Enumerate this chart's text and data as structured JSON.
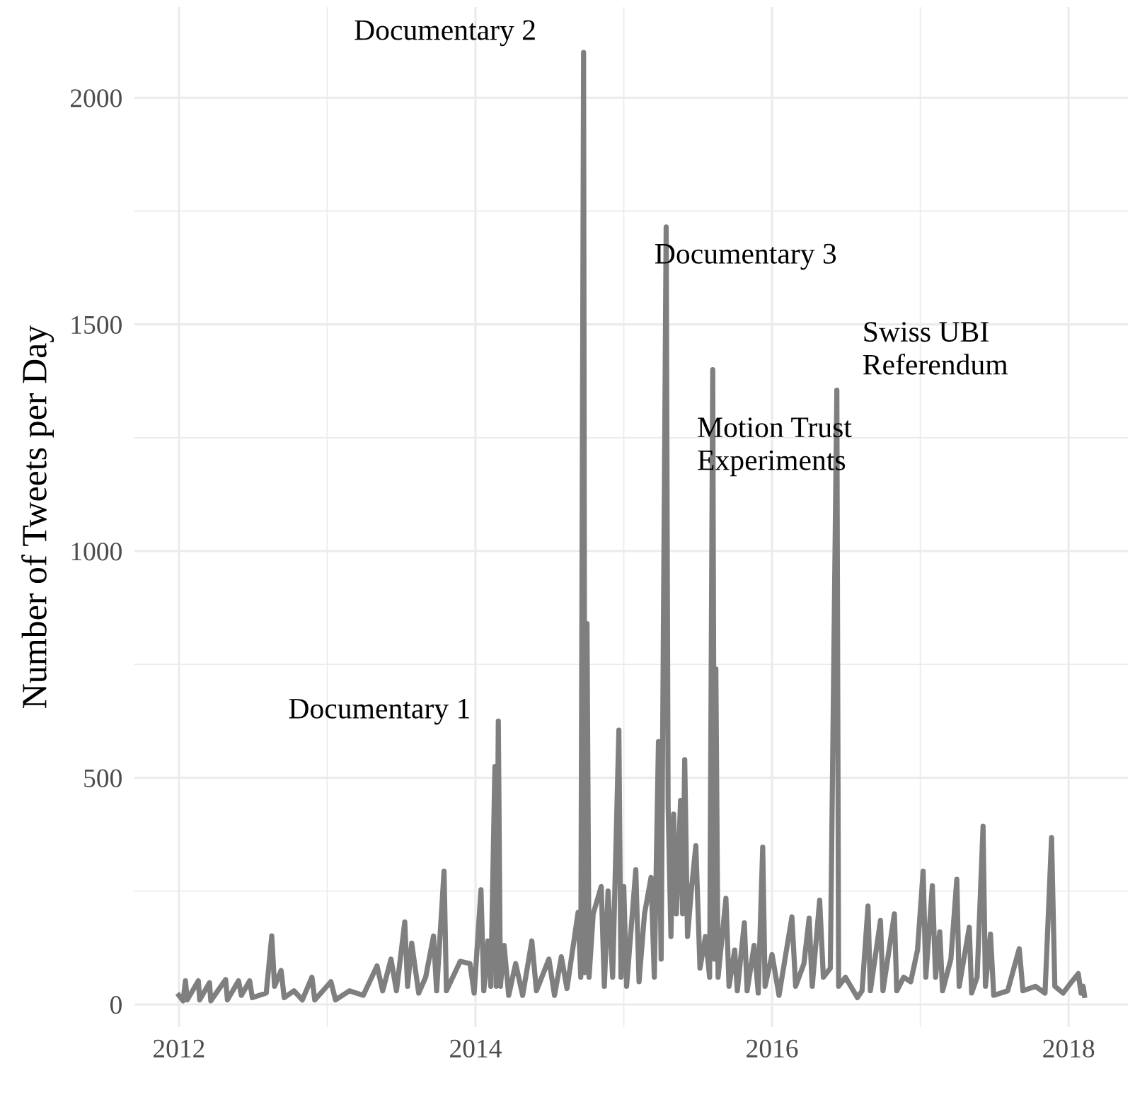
{
  "chart_data": {
    "type": "line",
    "ylabel": "Number of Tweets per Day",
    "x": [
      2012.0,
      2012.028,
      2012.044,
      2012.056,
      2012.131,
      2012.14,
      2012.206,
      2012.215,
      2012.315,
      2012.327,
      2012.402,
      2012.421,
      2012.477,
      2012.495,
      2012.589,
      2012.626,
      2012.645,
      2012.689,
      2012.71,
      2012.776,
      2012.832,
      2012.897,
      2012.916,
      2013.025,
      2013.056,
      2013.15,
      2013.243,
      2013.336,
      2013.374,
      2013.43,
      2013.467,
      2013.523,
      2013.542,
      2013.57,
      2013.617,
      2013.664,
      2013.717,
      2013.738,
      2013.788,
      2013.804,
      2013.897,
      2013.963,
      2013.991,
      2014.037,
      2014.056,
      2014.084,
      2014.103,
      2014.131,
      2014.14,
      2014.154,
      2014.168,
      2014.193,
      2014.224,
      2014.271,
      2014.318,
      2014.38,
      2014.411,
      2014.495,
      2014.533,
      2014.579,
      2014.617,
      2014.692,
      2014.71,
      2014.729,
      2014.738,
      2014.752,
      2014.766,
      2014.794,
      2014.848,
      2014.869,
      2014.894,
      2014.925,
      2014.967,
      2014.981,
      2015.0,
      2015.019,
      2015.081,
      2015.103,
      2015.14,
      2015.184,
      2015.206,
      2015.234,
      2015.252,
      2015.286,
      2015.299,
      2015.318,
      2015.336,
      2015.355,
      2015.383,
      2015.397,
      2015.411,
      2015.43,
      2015.458,
      2015.486,
      2015.514,
      2015.551,
      2015.579,
      2015.6,
      2015.612,
      2015.621,
      2015.636,
      2015.689,
      2015.71,
      2015.748,
      2015.766,
      2015.813,
      2015.832,
      2015.879,
      2015.907,
      2015.937,
      2015.953,
      2016.0,
      2016.047,
      2016.134,
      2016.159,
      2016.215,
      2016.25,
      2016.271,
      2016.321,
      2016.346,
      2016.393,
      2016.437,
      2016.449,
      2016.495,
      2016.576,
      2016.607,
      2016.647,
      2016.663,
      2016.731,
      2016.748,
      2016.825,
      2016.841,
      2016.888,
      2016.935,
      2016.981,
      2017.019,
      2017.037,
      2017.081,
      2017.103,
      2017.131,
      2017.15,
      2017.206,
      2017.246,
      2017.262,
      2017.33,
      2017.346,
      2017.383,
      2017.423,
      2017.439,
      2017.473,
      2017.495,
      2017.589,
      2017.667,
      2017.692,
      2017.776,
      2017.841,
      2017.885,
      2017.907,
      2017.963,
      2018.009,
      2018.065,
      2018.084,
      2018.098,
      2018.107
    ],
    "series": [
      {
        "color": "#7f7f7f",
        "values": [
          20,
          8,
          52,
          10,
          52,
          10,
          48,
          8,
          55,
          10,
          52,
          20,
          52,
          15,
          25,
          151,
          40,
          75,
          15,
          30,
          10,
          60,
          10,
          50,
          10,
          30,
          20,
          85,
          30,
          100,
          30,
          182,
          40,
          135,
          25,
          60,
          151,
          30,
          294,
          30,
          95,
          90,
          25,
          253,
          30,
          140,
          40,
          525,
          40,
          625,
          40,
          130,
          20,
          90,
          20,
          140,
          30,
          100,
          20,
          105,
          35,
          203,
          60,
          2100,
          70,
          840,
          60,
          200,
          260,
          40,
          250,
          60,
          605,
          60,
          260,
          40,
          297,
          50,
          200,
          280,
          60,
          580,
          100,
          1715,
          440,
          150,
          420,
          200,
          450,
          200,
          540,
          150,
          260,
          350,
          80,
          150,
          60,
          1400,
          100,
          740,
          60,
          234,
          40,
          120,
          30,
          180,
          30,
          130,
          25,
          347,
          40,
          110,
          20,
          193,
          40,
          90,
          190,
          40,
          230,
          60,
          80,
          1355,
          40,
          60,
          15,
          30,
          217,
          30,
          185,
          30,
          200,
          30,
          60,
          50,
          120,
          294,
          60,
          262,
          60,
          160,
          30,
          100,
          276,
          40,
          170,
          25,
          60,
          393,
          40,
          155,
          20,
          30,
          123,
          30,
          40,
          25,
          368,
          40,
          25,
          45,
          68,
          25,
          40,
          20
        ]
      }
    ],
    "xlim": [
      2011.7,
      2018.4
    ],
    "ylim": [
      -50,
      2200
    ],
    "xticks": [
      2012,
      {
        "value": 2013,
        "label": null
      },
      2014,
      {
        "value": 2015,
        "label": null
      },
      2016,
      {
        "value": 2017,
        "label": null
      },
      2018
    ],
    "yticks": [
      0,
      {
        "value": 250,
        "label": null
      },
      500,
      {
        "value": 750,
        "label": null
      },
      1000,
      {
        "value": 1250,
        "label": null
      },
      1500,
      {
        "value": 1750,
        "label": null
      },
      2000
    ],
    "grid": true,
    "line_style": "solid",
    "marker": "none",
    "annotations": [
      {
        "text": "Documentary 1",
        "x": 2014.154,
        "y": 625
      },
      {
        "text": "Documentary 2",
        "x": 2014.729,
        "y": 2100
      },
      {
        "text": "Documentary 3",
        "x": 2015.286,
        "y": 1715
      },
      {
        "text": "Motion Trust\nExperiments",
        "x": 2015.6,
        "y": 1400
      },
      {
        "text": "Swiss UBI\nReferendum",
        "x": 2016.437,
        "y": 1355
      }
    ]
  }
}
